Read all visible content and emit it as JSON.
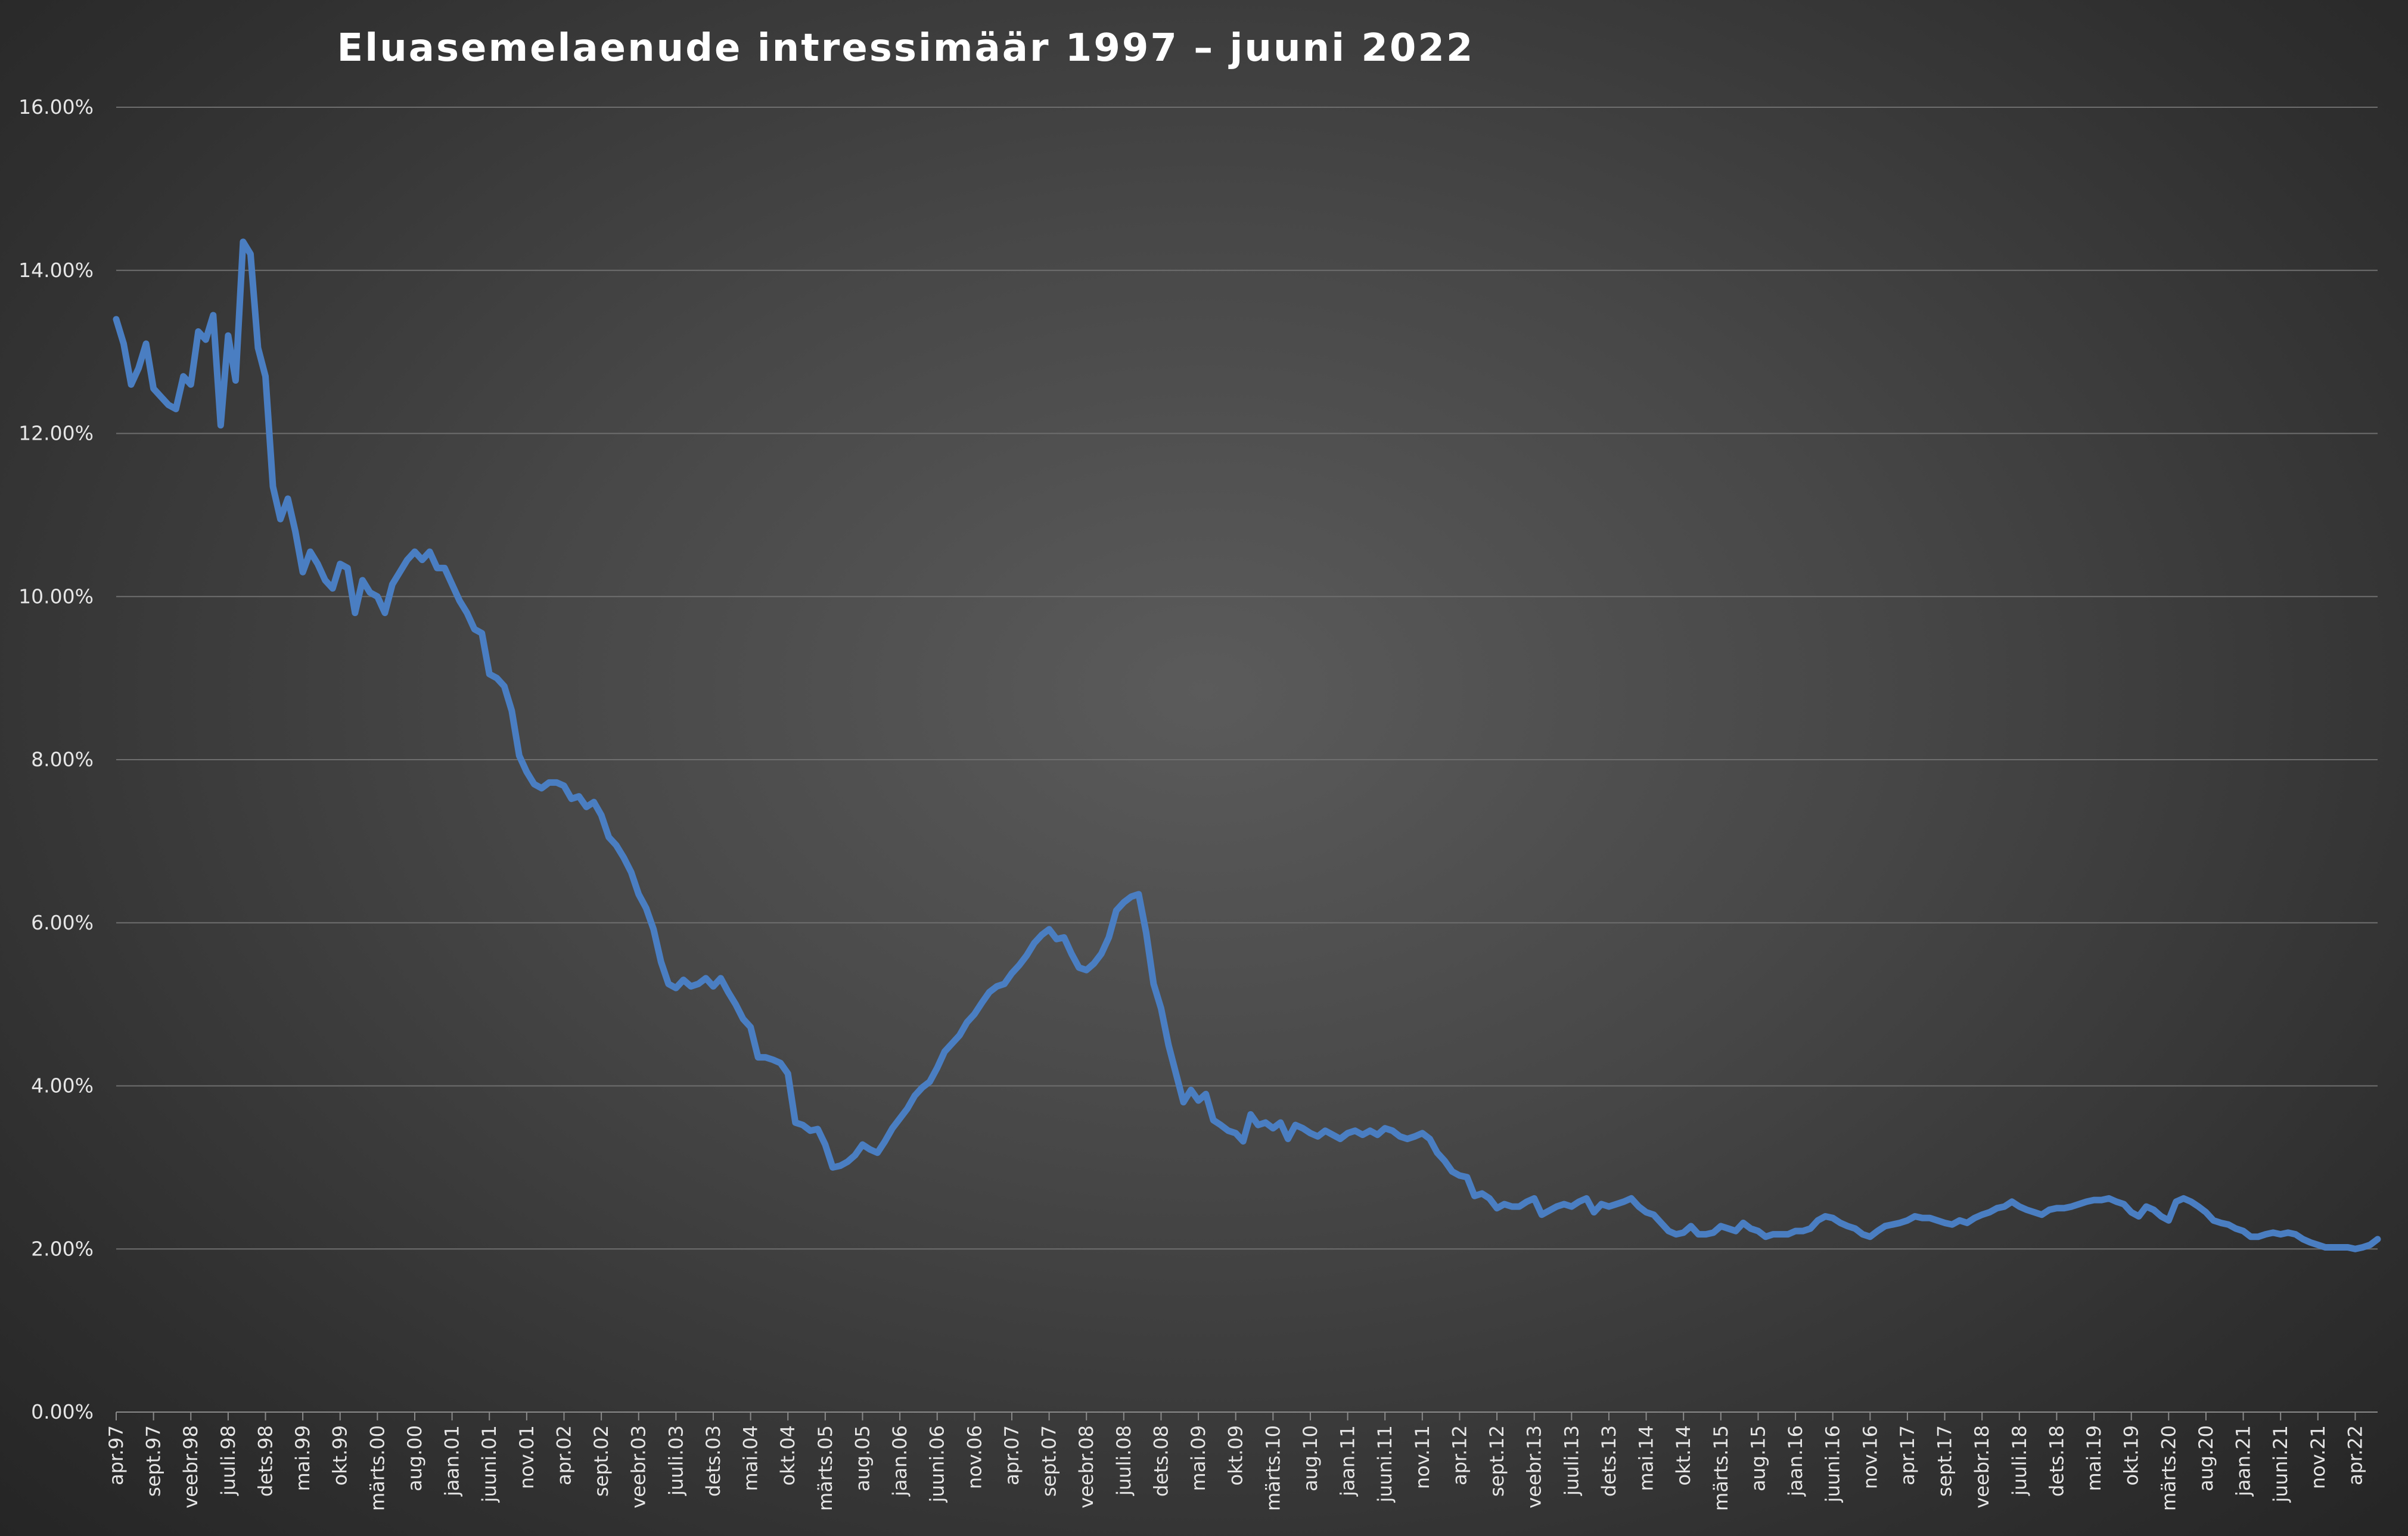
{
  "chart_data": {
    "type": "line",
    "title": "Eluasemelaenude intressimäär 1997 – juuni 2022",
    "xlabel": "",
    "ylabel": "",
    "ylim": [
      0,
      16
    ],
    "y_ticks": [
      "0.00%",
      "2.00%",
      "4.00%",
      "6.00%",
      "8.00%",
      "10.00%",
      "12.00%",
      "14.00%",
      "16.00%"
    ],
    "y_tick_values": [
      0,
      2,
      4,
      6,
      8,
      10,
      12,
      14,
      16
    ],
    "grid": true,
    "legend": "none",
    "line_color": "#4a7ec2",
    "x_start": "1997-04",
    "x_end": "2022-06",
    "x_tick_labels": [
      "apr.97",
      "sept.97",
      "veebr.98",
      "juuli.98",
      "dets.98",
      "mai.99",
      "okt.99",
      "märts.00",
      "aug.00",
      "jaan.01",
      "juuni.01",
      "nov.01",
      "apr.02",
      "sept.02",
      "veebr.03",
      "juuli.03",
      "dets.03",
      "mai.04",
      "okt.04",
      "märts.05",
      "aug.05",
      "jaan.06",
      "juuni.06",
      "nov.06",
      "apr.07",
      "sept.07",
      "veebr.08",
      "juuli.08",
      "dets.08",
      "mai.09",
      "okt.09",
      "märts.10",
      "aug.10",
      "jaan.11",
      "juuni.11",
      "nov.11",
      "apr.12",
      "sept.12",
      "veebr.13",
      "juuli.13",
      "dets.13",
      "mai.14",
      "okt.14",
      "märts.15",
      "aug.15",
      "jaan.16",
      "juuni.16",
      "nov.16",
      "apr.17",
      "sept.17",
      "veebr.18",
      "juuli.18",
      "dets.18",
      "mai.19",
      "okt.19",
      "märts.20",
      "aug.20",
      "jaan.21",
      "juuni.21",
      "nov.21",
      "apr.22"
    ],
    "series": [
      {
        "values": [
          13.4,
          13.1,
          12.6,
          12.8,
          13.1,
          12.55,
          12.45,
          12.35,
          12.3,
          12.7,
          12.6,
          13.25,
          13.15,
          13.45,
          12.1,
          13.2,
          12.65,
          14.35,
          14.2,
          13.05,
          12.7,
          11.35,
          10.95,
          11.2,
          10.8,
          10.3,
          10.55,
          10.4,
          10.2,
          10.1,
          10.4,
          10.35,
          9.8,
          10.2,
          10.05,
          10.0,
          9.8,
          10.15,
          10.3,
          10.45,
          10.55,
          10.45,
          10.55,
          10.35,
          10.35,
          10.15,
          9.95,
          9.8,
          9.6,
          9.55,
          9.05,
          9.0,
          8.9,
          8.6,
          8.05,
          7.85,
          7.7,
          7.65,
          7.72,
          7.72,
          7.68,
          7.52,
          7.55,
          7.42,
          7.48,
          7.32,
          7.05,
          6.95,
          6.8,
          6.62,
          6.35,
          6.18,
          5.92,
          5.52,
          5.25,
          5.2,
          5.3,
          5.22,
          5.25,
          5.32,
          5.22,
          5.32,
          5.15,
          5.0,
          4.82,
          4.72,
          4.35,
          4.35,
          4.32,
          4.28,
          4.15,
          3.55,
          3.52,
          3.45,
          3.47,
          3.28,
          3.0,
          3.02,
          3.07,
          3.15,
          3.28,
          3.22,
          3.18,
          3.32,
          3.48,
          3.6,
          3.72,
          3.88,
          3.98,
          4.05,
          4.22,
          4.42,
          4.52,
          4.62,
          4.78,
          4.88,
          5.02,
          5.15,
          5.22,
          5.25,
          5.38,
          5.48,
          5.6,
          5.75,
          5.85,
          5.92,
          5.8,
          5.82,
          5.62,
          5.45,
          5.42,
          5.5,
          5.62,
          5.82,
          6.15,
          6.25,
          6.32,
          6.35,
          5.88,
          5.25,
          4.95,
          4.5,
          4.15,
          3.8,
          3.95,
          3.82,
          3.9,
          3.58,
          3.52,
          3.45,
          3.42,
          3.32,
          3.65,
          3.52,
          3.55,
          3.48,
          3.55,
          3.35,
          3.52,
          3.48,
          3.42,
          3.38,
          3.45,
          3.4,
          3.35,
          3.42,
          3.45,
          3.4,
          3.45,
          3.4,
          3.48,
          3.45,
          3.38,
          3.35,
          3.38,
          3.42,
          3.35,
          3.18,
          3.08,
          2.95,
          2.9,
          2.88,
          2.65,
          2.68,
          2.62,
          2.5,
          2.55,
          2.52,
          2.52,
          2.58,
          2.62,
          2.42,
          2.47,
          2.52,
          2.55,
          2.52,
          2.58,
          2.62,
          2.45,
          2.55,
          2.52,
          2.55,
          2.58,
          2.62,
          2.52,
          2.45,
          2.42,
          2.32,
          2.22,
          2.18,
          2.2,
          2.28,
          2.18,
          2.18,
          2.2,
          2.28,
          2.25,
          2.22,
          2.32,
          2.25,
          2.22,
          2.15,
          2.18,
          2.18,
          2.18,
          2.22,
          2.22,
          2.25,
          2.35,
          2.4,
          2.38,
          2.32,
          2.28,
          2.25,
          2.18,
          2.15,
          2.22,
          2.28,
          2.3,
          2.32,
          2.35,
          2.4,
          2.38,
          2.38,
          2.35,
          2.32,
          2.3,
          2.35,
          2.32,
          2.38,
          2.42,
          2.45,
          2.5,
          2.52,
          2.58,
          2.52,
          2.48,
          2.45,
          2.42,
          2.48,
          2.5,
          2.5,
          2.52,
          2.55,
          2.58,
          2.6,
          2.6,
          2.62,
          2.58,
          2.55,
          2.45,
          2.4,
          2.52,
          2.48,
          2.4,
          2.35,
          2.58,
          2.62,
          2.58,
          2.52,
          2.45,
          2.35,
          2.32,
          2.3,
          2.25,
          2.22,
          2.15,
          2.15,
          2.18,
          2.2,
          2.18,
          2.2,
          2.18,
          2.12,
          2.08,
          2.05,
          2.02,
          2.02,
          2.02,
          2.02,
          2.0,
          2.02,
          2.05,
          2.12
        ]
      }
    ]
  }
}
